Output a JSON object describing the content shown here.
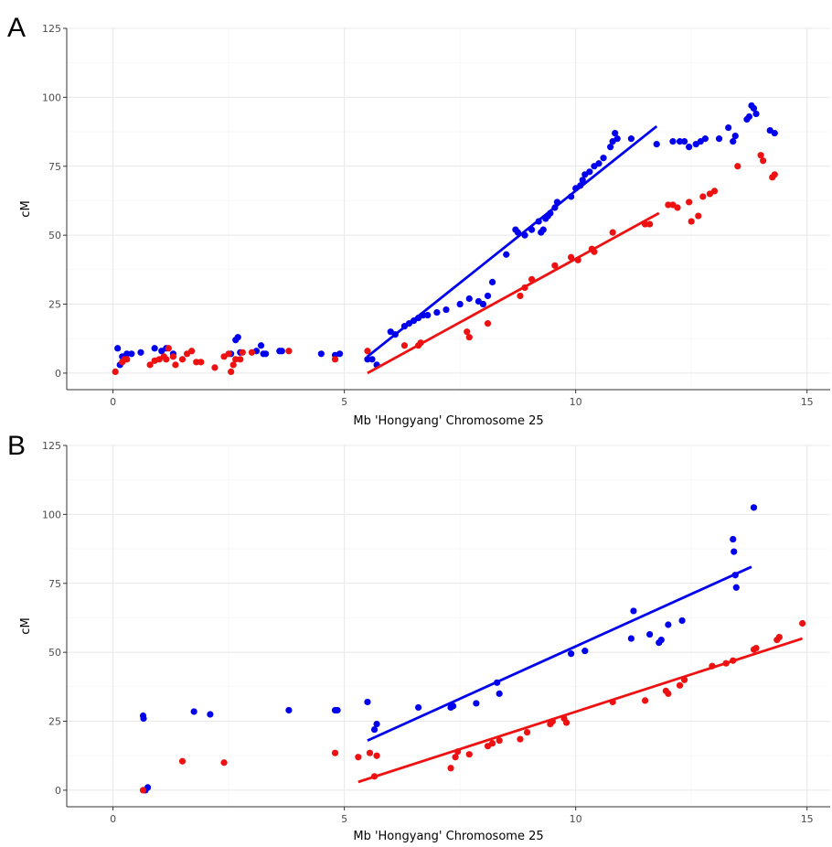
{
  "chart_data": [
    {
      "panel": "A",
      "type": "scatter",
      "xlabel": "Mb 'Hongyang' Chromosome 25",
      "ylabel": "cM",
      "xlim": [
        -1,
        15.5
      ],
      "ylim": [
        -6,
        125
      ],
      "xticks": [
        0,
        5,
        10,
        15
      ],
      "yticks": [
        0,
        25,
        50,
        75,
        100,
        125
      ],
      "grid": true,
      "colors": {
        "blue": "#0000ee",
        "red": "#ee1111"
      },
      "series": [
        {
          "color": "blue",
          "points": [
            [
              0.1,
              9
            ],
            [
              0.15,
              3
            ],
            [
              0.2,
              6
            ],
            [
              0.3,
              7
            ],
            [
              0.4,
              7
            ],
            [
              0.6,
              7.5
            ],
            [
              0.9,
              9
            ],
            [
              1.05,
              8
            ],
            [
              1.15,
              9
            ],
            [
              1.3,
              7
            ],
            [
              2.55,
              7
            ],
            [
              2.65,
              12
            ],
            [
              2.7,
              13
            ],
            [
              2.75,
              7.5
            ],
            [
              3.1,
              8
            ],
            [
              3.2,
              10
            ],
            [
              3.25,
              7
            ],
            [
              3.3,
              7
            ],
            [
              3.6,
              8
            ],
            [
              3.65,
              8
            ],
            [
              4.5,
              7
            ],
            [
              4.8,
              6.5
            ],
            [
              4.9,
              7
            ],
            [
              5.5,
              5
            ],
            [
              5.6,
              5
            ],
            [
              5.7,
              3
            ],
            [
              6.0,
              15
            ],
            [
              6.1,
              14
            ],
            [
              6.3,
              17
            ],
            [
              6.4,
              18
            ],
            [
              6.5,
              19
            ],
            [
              6.6,
              20
            ],
            [
              6.7,
              21
            ],
            [
              6.8,
              21
            ],
            [
              7.0,
              22
            ],
            [
              7.2,
              23
            ],
            [
              7.5,
              25
            ],
            [
              7.7,
              27
            ],
            [
              7.9,
              26
            ],
            [
              8.0,
              25
            ],
            [
              8.1,
              28
            ],
            [
              8.2,
              33
            ],
            [
              8.5,
              43
            ],
            [
              8.7,
              52
            ],
            [
              8.75,
              51
            ],
            [
              8.9,
              50
            ],
            [
              9.05,
              52
            ],
            [
              9.2,
              55
            ],
            [
              9.25,
              51
            ],
            [
              9.3,
              52
            ],
            [
              9.35,
              56
            ],
            [
              9.4,
              57
            ],
            [
              9.45,
              58
            ],
            [
              9.55,
              60
            ],
            [
              9.6,
              62
            ],
            [
              9.9,
              64
            ],
            [
              10.0,
              67
            ],
            [
              10.1,
              68
            ],
            [
              10.15,
              70
            ],
            [
              10.2,
              72
            ],
            [
              10.3,
              73
            ],
            [
              10.4,
              75
            ],
            [
              10.5,
              76
            ],
            [
              10.6,
              78
            ],
            [
              10.75,
              82
            ],
            [
              10.8,
              84
            ],
            [
              10.85,
              87
            ],
            [
              10.9,
              85
            ],
            [
              11.2,
              85
            ],
            [
              11.75,
              83
            ],
            [
              12.1,
              84
            ],
            [
              12.25,
              84
            ],
            [
              12.35,
              84
            ],
            [
              12.45,
              82
            ],
            [
              12.6,
              83
            ],
            [
              12.7,
              84
            ],
            [
              12.8,
              85
            ],
            [
              13.1,
              85
            ],
            [
              13.3,
              89
            ],
            [
              13.4,
              84
            ],
            [
              13.45,
              86
            ],
            [
              13.7,
              92
            ],
            [
              13.75,
              93
            ],
            [
              13.8,
              97
            ],
            [
              13.85,
              96
            ],
            [
              13.9,
              94
            ],
            [
              14.2,
              88
            ],
            [
              14.3,
              87
            ]
          ]
        },
        {
          "color": "red",
          "points": [
            [
              0.05,
              0.5
            ],
            [
              0.2,
              4
            ],
            [
              0.25,
              5
            ],
            [
              0.3,
              5
            ],
            [
              0.8,
              3
            ],
            [
              0.9,
              4.5
            ],
            [
              1.0,
              5
            ],
            [
              1.1,
              6
            ],
            [
              1.15,
              5
            ],
            [
              1.2,
              9
            ],
            [
              1.3,
              6
            ],
            [
              1.35,
              3
            ],
            [
              1.5,
              5
            ],
            [
              1.6,
              7
            ],
            [
              1.7,
              8
            ],
            [
              1.8,
              4
            ],
            [
              1.9,
              4
            ],
            [
              2.2,
              2
            ],
            [
              2.4,
              6
            ],
            [
              2.5,
              7
            ],
            [
              2.55,
              0.5
            ],
            [
              2.6,
              3
            ],
            [
              2.65,
              5
            ],
            [
              2.75,
              5
            ],
            [
              2.8,
              7.5
            ],
            [
              3.0,
              7.5
            ],
            [
              3.8,
              8
            ],
            [
              4.8,
              5
            ],
            [
              5.5,
              8
            ],
            [
              6.3,
              10
            ],
            [
              6.6,
              10
            ],
            [
              6.65,
              11
            ],
            [
              7.65,
              15
            ],
            [
              7.7,
              13
            ],
            [
              8.1,
              18
            ],
            [
              8.8,
              28
            ],
            [
              8.9,
              31
            ],
            [
              9.05,
              34
            ],
            [
              9.55,
              39
            ],
            [
              9.9,
              42
            ],
            [
              10.05,
              41
            ],
            [
              10.35,
              45
            ],
            [
              10.4,
              44
            ],
            [
              10.8,
              51
            ],
            [
              11.5,
              54
            ],
            [
              11.6,
              54
            ],
            [
              12.0,
              61
            ],
            [
              12.1,
              61
            ],
            [
              12.2,
              60
            ],
            [
              12.45,
              62
            ],
            [
              12.5,
              55
            ],
            [
              12.65,
              57
            ],
            [
              12.75,
              64
            ],
            [
              12.9,
              65
            ],
            [
              13.0,
              66
            ],
            [
              13.5,
              75
            ],
            [
              14.0,
              79
            ],
            [
              14.05,
              77
            ],
            [
              14.25,
              71
            ],
            [
              14.3,
              72
            ]
          ]
        }
      ],
      "fits": [
        {
          "color": "blue",
          "x": [
            5.5,
            11.75
          ],
          "y": [
            6,
            89.5
          ]
        },
        {
          "color": "red",
          "x": [
            5.5,
            11.8
          ],
          "y": [
            0,
            58
          ]
        }
      ]
    },
    {
      "panel": "B",
      "type": "scatter",
      "xlabel": "Mb 'Hongyang' Chromosome 25",
      "ylabel": "cM",
      "xlim": [
        -1,
        15.5
      ],
      "ylim": [
        -6,
        125
      ],
      "xticks": [
        0,
        5,
        10,
        15
      ],
      "yticks": [
        0,
        25,
        50,
        75,
        100,
        125
      ],
      "grid": true,
      "colors": {
        "blue": "#0000ee",
        "red": "#ee1111"
      },
      "series": [
        {
          "color": "blue",
          "points": [
            [
              0.65,
              27
            ],
            [
              0.66,
              26
            ],
            [
              0.7,
              0
            ],
            [
              0.75,
              1
            ],
            [
              1.75,
              28.5
            ],
            [
              2.1,
              27.5
            ],
            [
              3.8,
              29
            ],
            [
              4.8,
              29
            ],
            [
              4.85,
              29
            ],
            [
              5.5,
              32
            ],
            [
              5.65,
              22
            ],
            [
              5.7,
              24
            ],
            [
              6.6,
              30
            ],
            [
              7.3,
              30
            ],
            [
              7.35,
              30.5
            ],
            [
              7.85,
              31.5
            ],
            [
              8.3,
              39
            ],
            [
              8.35,
              35
            ],
            [
              9.9,
              49.5
            ],
            [
              10.2,
              50.5
            ],
            [
              11.2,
              55
            ],
            [
              11.25,
              65
            ],
            [
              11.6,
              56.5
            ],
            [
              11.8,
              53.5
            ],
            [
              11.85,
              54.5
            ],
            [
              12.0,
              60
            ],
            [
              12.3,
              61.5
            ],
            [
              13.4,
              91
            ],
            [
              13.42,
              86.5
            ],
            [
              13.45,
              78
            ],
            [
              13.47,
              73.5
            ],
            [
              13.85,
              102.5
            ]
          ]
        },
        {
          "color": "red",
          "points": [
            [
              0.65,
              0
            ],
            [
              1.5,
              10.5
            ],
            [
              2.4,
              10
            ],
            [
              4.8,
              13.5
            ],
            [
              5.3,
              12
            ],
            [
              5.55,
              13.5
            ],
            [
              5.65,
              5
            ],
            [
              5.7,
              12.5
            ],
            [
              7.3,
              8
            ],
            [
              7.4,
              12
            ],
            [
              7.45,
              14
            ],
            [
              7.7,
              13
            ],
            [
              8.1,
              16
            ],
            [
              8.2,
              17
            ],
            [
              8.35,
              18
            ],
            [
              8.8,
              18.5
            ],
            [
              8.95,
              21
            ],
            [
              9.45,
              24
            ],
            [
              9.5,
              25
            ],
            [
              9.75,
              26
            ],
            [
              9.8,
              24.5
            ],
            [
              10.8,
              32
            ],
            [
              11.5,
              32.5
            ],
            [
              11.95,
              36
            ],
            [
              12.0,
              35
            ],
            [
              12.25,
              38
            ],
            [
              12.35,
              40
            ],
            [
              12.95,
              45
            ],
            [
              13.25,
              46
            ],
            [
              13.4,
              47
            ],
            [
              13.85,
              51
            ],
            [
              13.9,
              51.5
            ],
            [
              14.35,
              54.5
            ],
            [
              14.4,
              55.5
            ],
            [
              14.9,
              60.5
            ]
          ]
        }
      ],
      "fits": [
        {
          "color": "blue",
          "x": [
            5.5,
            13.8
          ],
          "y": [
            18,
            81
          ]
        },
        {
          "color": "red",
          "x": [
            5.3,
            14.9
          ],
          "y": [
            3,
            55
          ]
        }
      ]
    }
  ]
}
